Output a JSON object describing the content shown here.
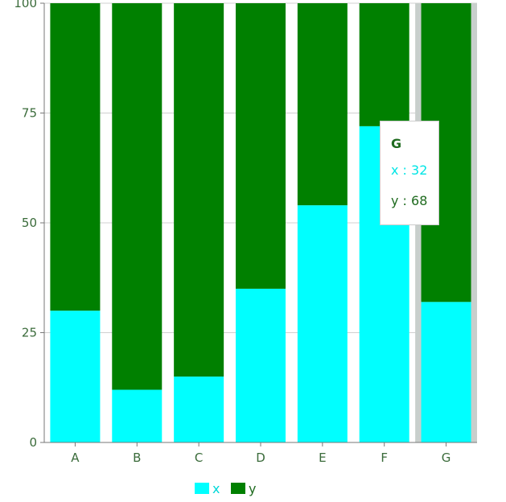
{
  "chart_data": {
    "type": "bar",
    "stacked": true,
    "categories": [
      "A",
      "B",
      "C",
      "D",
      "E",
      "F",
      "G"
    ],
    "series": [
      {
        "name": "x",
        "color": "#00ffff",
        "values": [
          30,
          12,
          15,
          35,
          54,
          72,
          32
        ]
      },
      {
        "name": "y",
        "color": "#008000",
        "values": [
          70,
          88,
          85,
          65,
          46,
          28,
          68
        ]
      }
    ],
    "ylim": [
      0,
      100
    ],
    "yticks": [
      0,
      25,
      50,
      75,
      100
    ],
    "grid": true,
    "legend_position": "bottom",
    "highlighted_category": "G"
  },
  "tooltip": {
    "title": "G",
    "rows": [
      {
        "name": "x",
        "separator": " : ",
        "value": "32",
        "color": "#00ffff"
      },
      {
        "name": "y",
        "separator": " : ",
        "value": "68",
        "color": "#008000"
      }
    ]
  }
}
